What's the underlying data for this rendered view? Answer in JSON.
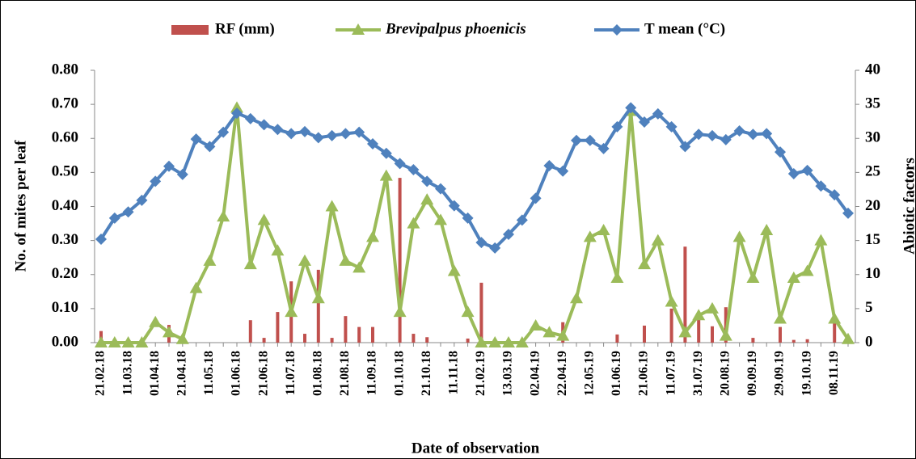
{
  "chart_data": {
    "type": "combo",
    "x_label": "Date of observation",
    "y_label": "No. of mites per leaf",
    "y2_label": "Abiotic factors",
    "categories": [
      "21.02.18",
      null,
      "11.03.18",
      null,
      "01.04.18",
      null,
      "21.04.18",
      null,
      "11.05.18",
      null,
      "01.06.18",
      null,
      "21.06.18",
      null,
      "11.07.18",
      null,
      "01.08.18",
      null,
      "21.08.18",
      null,
      "11.09.18",
      null,
      "01.10.18",
      null,
      "21.10.18",
      null,
      "11.11.18",
      null,
      "21.02.19",
      null,
      "13.03.19",
      null,
      "02.04.19",
      null,
      "22.04.19",
      null,
      "12.05.19",
      null,
      "01.06.19",
      null,
      "21.06.19",
      null,
      "11.07.19",
      null,
      "31.07.19",
      null,
      "20.08.19",
      null,
      "09.09.19",
      null,
      "29.09.19",
      null,
      "19.10.19",
      null,
      "08.11.19",
      null
    ],
    "series": [
      {
        "name": "RF (mm)",
        "type": "bar",
        "axis": "y2",
        "color": "#c0504d",
        "values": [
          1.7,
          0,
          0,
          0,
          0,
          2.6,
          0,
          0,
          0,
          0,
          0,
          3.3,
          0.7,
          4.5,
          9.0,
          1.3,
          10.7,
          0.7,
          3.9,
          2.3,
          2.3,
          0,
          24.2,
          1.3,
          0.8,
          0,
          0,
          0.6,
          8.8,
          0,
          0,
          0,
          0,
          0,
          3.0,
          0,
          0,
          0,
          1.2,
          0,
          2.5,
          0,
          5.0,
          14.1,
          3.4,
          2.4,
          5.2,
          0,
          0.7,
          0,
          2.3,
          0.4,
          0.5,
          0,
          2.8,
          0
        ]
      },
      {
        "name": "Brevipalpus phoenicis",
        "type": "line",
        "marker": "triangle",
        "color": "#9bbb59",
        "values": [
          0,
          0,
          0,
          0,
          0.06,
          0.03,
          0.01,
          0.16,
          0.24,
          0.37,
          0.69,
          0.23,
          0.36,
          0.27,
          0.09,
          0.24,
          0.13,
          0.4,
          0.24,
          0.22,
          0.31,
          0.49,
          0.09,
          0.35,
          0.42,
          0.36,
          0.21,
          0.09,
          0,
          0,
          0,
          0,
          0.05,
          0.03,
          0.02,
          0.13,
          0.31,
          0.33,
          0.19,
          0.68,
          0.23,
          0.3,
          0.12,
          0.03,
          0.08,
          0.1,
          0.02,
          0.31,
          0.19,
          0.33,
          0.07,
          0.19,
          0.21,
          0.3,
          0.07,
          0.01
        ]
      },
      {
        "name": "T mean (°C)",
        "type": "line",
        "marker": "diamond",
        "axis": "y2",
        "color": "#4f81bd",
        "values": [
          15.2,
          18.3,
          19.2,
          20.9,
          23.7,
          25.9,
          24.7,
          29.9,
          28.8,
          30.9,
          33.7,
          32.9,
          32.0,
          31.3,
          30.7,
          31.0,
          30.1,
          30.4,
          30.7,
          30.9,
          29.2,
          27.8,
          26.3,
          25.4,
          23.7,
          22.6,
          20.1,
          18.3,
          14.7,
          13.9,
          15.9,
          18.0,
          21.2,
          26.0,
          25.2,
          29.7,
          29.7,
          28.5,
          31.7,
          34.5,
          32.4,
          33.6,
          31.7,
          28.8,
          30.6,
          30.4,
          29.8,
          31.1,
          30.6,
          30.7,
          28.0,
          24.8,
          25.3,
          23.0,
          21.7,
          19.0
        ]
      }
    ],
    "ylim": [
      0,
      0.8
    ],
    "yticks": [
      {
        "value": 0,
        "label": "0.00"
      },
      {
        "value": 0.1,
        "label": "0.10"
      },
      {
        "value": 0.2,
        "label": "0.20"
      },
      {
        "value": 0.3,
        "label": "0.30"
      },
      {
        "value": 0.4,
        "label": "0.40"
      },
      {
        "value": 0.5,
        "label": "0.50"
      },
      {
        "value": 0.6,
        "label": "0.60"
      },
      {
        "value": 0.7,
        "label": "0.70"
      },
      {
        "value": 0.8,
        "label": "0.80"
      }
    ],
    "y2lim": [
      0,
      40
    ],
    "y2ticks": [
      0,
      5,
      10,
      15,
      20,
      25,
      30,
      35,
      40
    ],
    "legend": "top"
  }
}
